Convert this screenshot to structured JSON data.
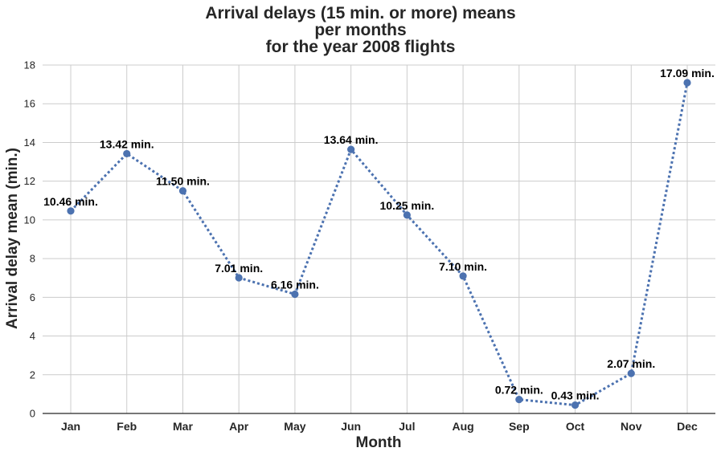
{
  "chart_data": {
    "type": "line",
    "title_lines": [
      "Arrival delays (15 min. or more) means",
      "per months",
      "for the year 2008 flights"
    ],
    "xlabel": "Month",
    "ylabel": "Arrival delay mean (min.)",
    "categories": [
      "Jan",
      "Feb",
      "Mar",
      "Apr",
      "May",
      "Jun",
      "Jul",
      "Aug",
      "Sep",
      "Oct",
      "Nov",
      "Dec"
    ],
    "values": [
      10.46,
      13.42,
      11.5,
      7.01,
      6.16,
      13.64,
      10.25,
      7.1,
      0.72,
      0.43,
      2.07,
      17.09
    ],
    "data_labels": [
      "10.46 min.",
      "13.42 min.",
      "11.50 min.",
      "7.01 min.",
      "6.16 min.",
      "13.64 min.",
      "10.25 min.",
      "7.10 min.",
      "0.72 min.",
      "0.43 min.",
      "2.07 min.",
      "17.09 min."
    ],
    "ylim": [
      0,
      18
    ],
    "yticks": [
      0,
      2,
      4,
      6,
      8,
      10,
      12,
      14,
      16,
      18
    ],
    "grid": true,
    "line_style": "dotted",
    "marker": "circle",
    "colors": {
      "series": "#4c72b0",
      "grid": "#cccccc",
      "text": "#262626"
    }
  }
}
